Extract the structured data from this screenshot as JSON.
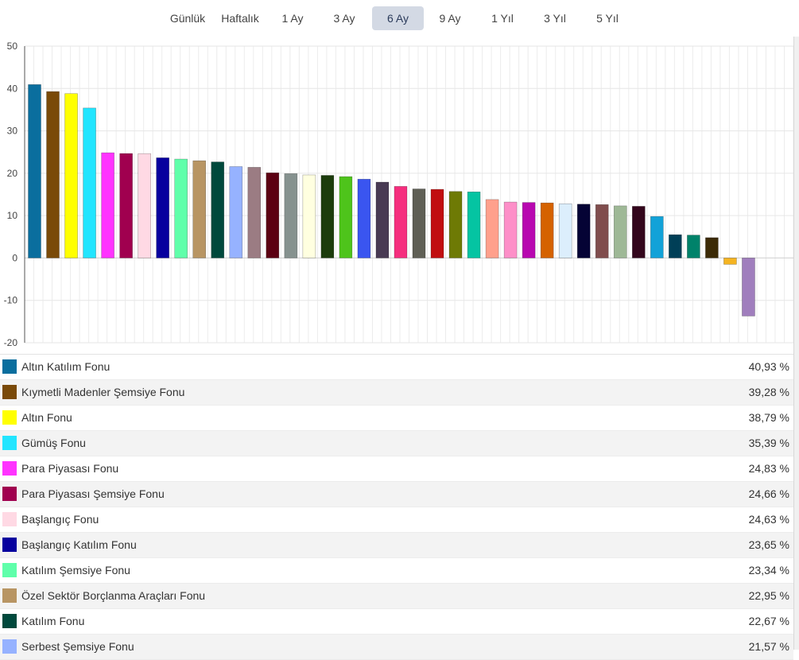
{
  "tabs": [
    {
      "label": "Günlük",
      "active": false
    },
    {
      "label": "Haftalık",
      "active": false
    },
    {
      "label": "1 Ay",
      "active": false
    },
    {
      "label": "3 Ay",
      "active": false
    },
    {
      "label": "6 Ay",
      "active": true
    },
    {
      "label": "9 Ay",
      "active": false
    },
    {
      "label": "1 Yıl",
      "active": false
    },
    {
      "label": "3 Yıl",
      "active": false
    },
    {
      "label": "5 Yıl",
      "active": false
    }
  ],
  "chart_data": {
    "type": "bar",
    "ylim": [
      -20,
      50
    ],
    "yticks": [
      50,
      40,
      30,
      20,
      10,
      0,
      -10,
      -20
    ],
    "grid": true,
    "legend_position": "bottom",
    "values": [
      40.93,
      39.28,
      38.79,
      35.39,
      24.83,
      24.66,
      24.63,
      23.65,
      23.34,
      22.95,
      22.67,
      21.57,
      21.4,
      20.1,
      19.9,
      19.6,
      19.5,
      19.2,
      18.6,
      17.9,
      16.9,
      16.3,
      16.2,
      15.7,
      15.6,
      13.8,
      13.2,
      13.1,
      13.0,
      12.8,
      12.7,
      12.6,
      12.3,
      12.2,
      9.8,
      5.5,
      5.4,
      4.8,
      -1.5,
      -13.7
    ],
    "colors": [
      "#0a6e9e",
      "#7a4a08",
      "#ffff00",
      "#22e5ff",
      "#ff33ff",
      "#a0004f",
      "#ffd9e4",
      "#07009e",
      "#5fffaa",
      "#b89563",
      "#00493c",
      "#96b2ff",
      "#9b7c83",
      "#5c0012",
      "#86928f",
      "#ffffe0",
      "#1c3c0c",
      "#4ec41b",
      "#3a55f0",
      "#483a53",
      "#f52e7e",
      "#5f5f55",
      "#c10e10",
      "#6e7a05",
      "#05c4a2",
      "#ffa08c",
      "#fd8fc8",
      "#b808b0",
      "#d56200",
      "#dceefc",
      "#050335",
      "#804d4d",
      "#9eb896",
      "#33061c",
      "#12a2d8",
      "#003f57",
      "#00826a",
      "#3c2b07",
      "#f5b421",
      "#a07ebd"
    ]
  },
  "legend": [
    {
      "name": "Altın Katılım Fonu",
      "value": "40,93 %"
    },
    {
      "name": "Kıymetli Madenler Şemsiye Fonu",
      "value": "39,28 %"
    },
    {
      "name": "Altın Fonu",
      "value": "38,79 %"
    },
    {
      "name": "Gümüş Fonu",
      "value": "35,39 %"
    },
    {
      "name": "Para Piyasası Fonu",
      "value": "24,83 %"
    },
    {
      "name": "Para Piyasası Şemsiye Fonu",
      "value": "24,66 %"
    },
    {
      "name": "Başlangıç Fonu",
      "value": "24,63 %"
    },
    {
      "name": "Başlangıç Katılım Fonu",
      "value": "23,65 %"
    },
    {
      "name": "Katılım Şemsiye Fonu",
      "value": "23,34 %"
    },
    {
      "name": "Özel Sektör Borçlanma Araçları Fonu",
      "value": "22,95 %"
    },
    {
      "name": "Katılım Fonu",
      "value": "22,67 %"
    },
    {
      "name": "Serbest Şemsiye Fonu",
      "value": "21,57 %"
    }
  ]
}
